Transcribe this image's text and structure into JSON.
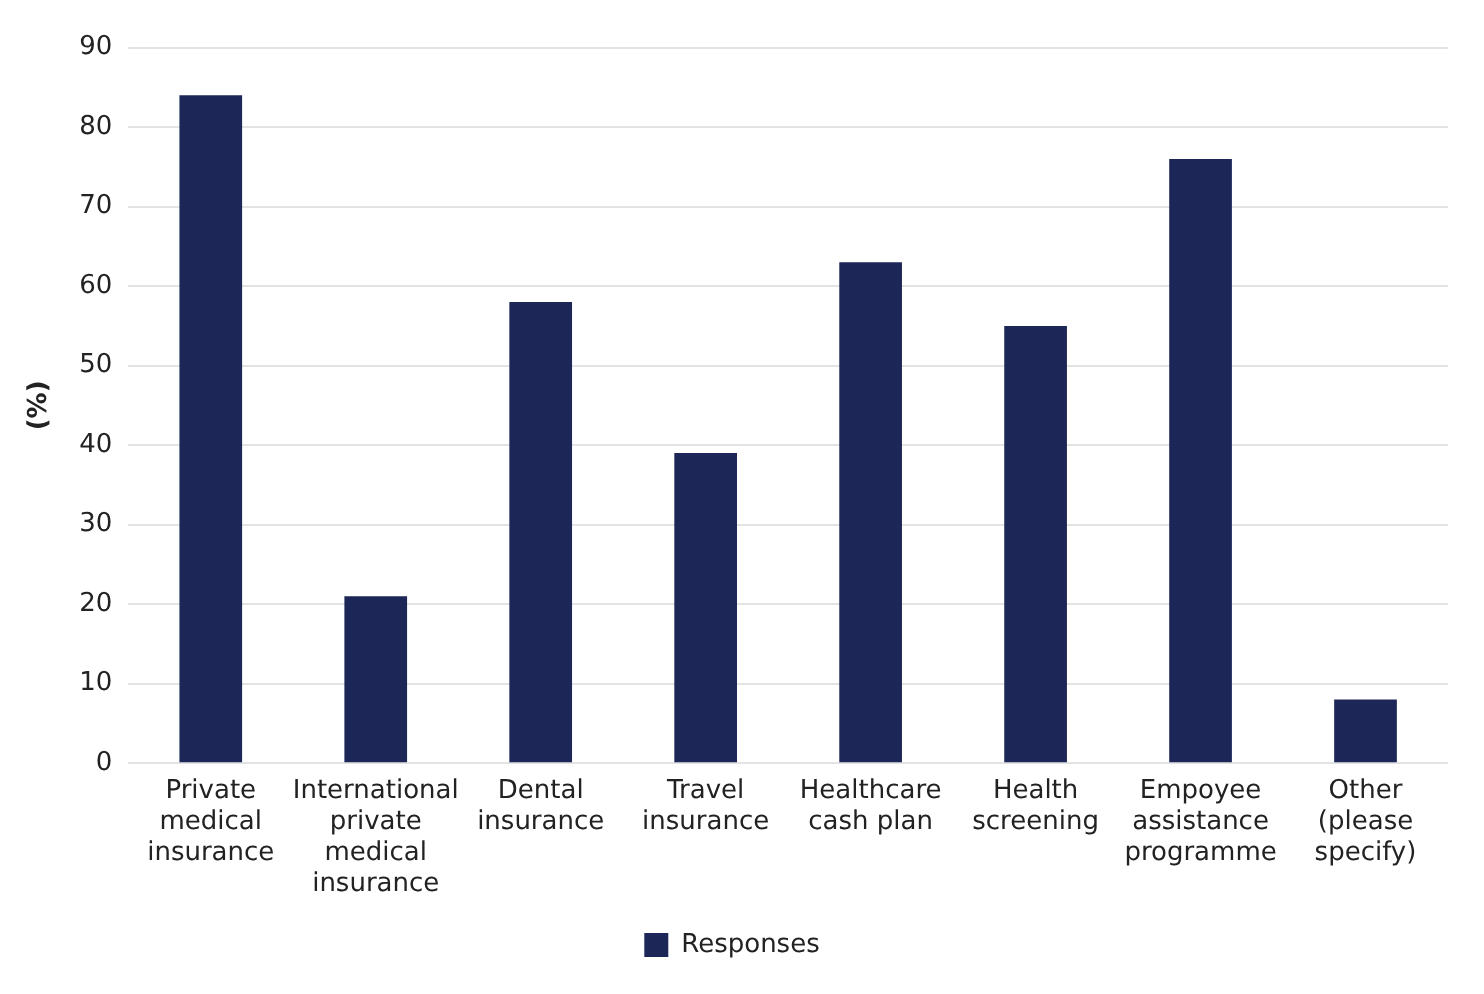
{
  "chart_data": {
    "type": "bar",
    "ylabel": "(%)",
    "categories": [
      "Private\nmedical\ninsurance",
      "International\nprivate\nmedical\ninsurance",
      "Dental\ninsurance",
      "Travel\ninsurance",
      "Healthcare\ncash plan",
      "Health\nscreening",
      "Empoyee\nassistance\nprogramme",
      "Other\n(please\nspecify)"
    ],
    "series": [
      {
        "name": "Responses",
        "color": "#1c2657",
        "values": [
          84,
          21,
          58,
          39,
          63,
          55,
          76,
          8
        ]
      }
    ],
    "ylim": [
      0,
      90
    ],
    "yticks": [
      0,
      10,
      20,
      30,
      40,
      50,
      60,
      70,
      80,
      90
    ],
    "grid": "y",
    "legend": "bottom"
  }
}
